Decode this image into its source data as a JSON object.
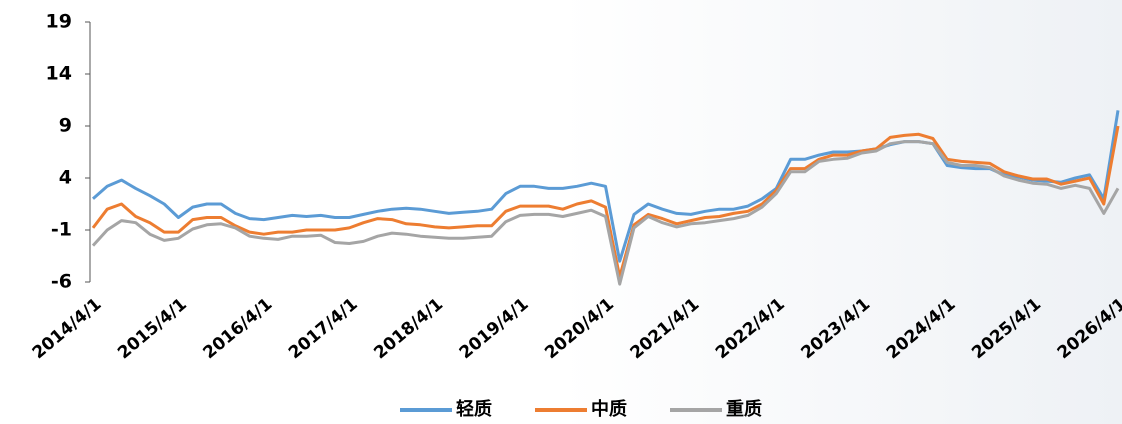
{
  "chart_data": {
    "type": "line",
    "categories": [
      "2014/4/1",
      null,
      null,
      null,
      null,
      null,
      "2015/4/1",
      null,
      null,
      null,
      null,
      null,
      "2016/4/1",
      null,
      null,
      null,
      null,
      null,
      "2017/4/1",
      null,
      null,
      null,
      null,
      null,
      "2018/4/1",
      null,
      null,
      null,
      null,
      null,
      "2019/4/1",
      null,
      null,
      null,
      null,
      null,
      "2020/4/1",
      null,
      null,
      null,
      null,
      null,
      "2021/4/1",
      null,
      null,
      null,
      null,
      null,
      "2022/4/1",
      null,
      null,
      null,
      null,
      null,
      "2023/4/1",
      null,
      null,
      null,
      null,
      null,
      "2024/4/1",
      null,
      null,
      null,
      null,
      null,
      "2025/4/1",
      null,
      null,
      null,
      null,
      null,
      "2026/4/1"
    ],
    "series": [
      {
        "name": "轻质",
        "color": "#5b9bd5",
        "values": [
          2,
          3.2,
          3.8,
          3,
          2.3,
          1.5,
          0.2,
          1.2,
          1.5,
          1.5,
          0.6,
          0.1,
          0,
          0.2,
          0.4,
          0.3,
          0.4,
          0.2,
          0.2,
          0.5,
          0.8,
          1.0,
          1.1,
          1.0,
          0.8,
          0.6,
          0.7,
          0.8,
          1.0,
          2.5,
          3.2,
          3.2,
          3.0,
          3.0,
          3.2,
          3.5,
          3.2,
          -4,
          0.5,
          1.5,
          1.0,
          0.6,
          0.5,
          0.8,
          1.0,
          1.0,
          1.3,
          2.0,
          3.0,
          5.8,
          5.8,
          6.2,
          6.5,
          6.5,
          6.6,
          6.8,
          7.2,
          7.5,
          7.5,
          7.3,
          5.2,
          5.0,
          4.9,
          4.9,
          4.3,
          4.1,
          3.8,
          3.7,
          3.6,
          4.0,
          4.3,
          2.0,
          10.5
        ]
      },
      {
        "name": "中质",
        "color": "#ed7d31",
        "values": [
          -0.8,
          1.0,
          1.5,
          0.3,
          -0.3,
          -1.2,
          -1.2,
          0.0,
          0.2,
          0.2,
          -0.6,
          -1.2,
          -1.4,
          -1.2,
          -1.2,
          -1.0,
          -1.0,
          -1.0,
          -0.8,
          -0.3,
          0.1,
          0.0,
          -0.4,
          -0.5,
          -0.7,
          -0.8,
          -0.7,
          -0.6,
          -0.6,
          0.8,
          1.3,
          1.3,
          1.3,
          1.0,
          1.5,
          1.8,
          1.2,
          -5.5,
          -0.5,
          0.5,
          0.1,
          -0.4,
          -0.1,
          0.2,
          0.3,
          0.6,
          0.8,
          1.5,
          2.8,
          4.9,
          4.9,
          5.8,
          6.2,
          6.2,
          6.6,
          6.8,
          7.9,
          8.1,
          8.2,
          7.8,
          5.8,
          5.6,
          5.5,
          5.4,
          4.6,
          4.2,
          3.9,
          3.9,
          3.4,
          3.7,
          4.0,
          1.5,
          9.0
        ]
      },
      {
        "name": "重质",
        "color": "#a5a5a5",
        "values": [
          -2.5,
          -1.0,
          -0.1,
          -0.3,
          -1.4,
          -2.0,
          -1.8,
          -0.9,
          -0.5,
          -0.4,
          -0.8,
          -1.6,
          -1.8,
          -1.9,
          -1.6,
          -1.6,
          -1.5,
          -2.2,
          -2.3,
          -2.1,
          -1.6,
          -1.3,
          -1.4,
          -1.6,
          -1.7,
          -1.8,
          -1.8,
          -1.7,
          -1.6,
          -0.2,
          0.4,
          0.5,
          0.5,
          0.3,
          0.6,
          0.9,
          0.3,
          -6.2,
          -0.8,
          0.3,
          -0.3,
          -0.7,
          -0.4,
          -0.3,
          -0.1,
          0.1,
          0.4,
          1.2,
          2.5,
          4.6,
          4.6,
          5.6,
          5.8,
          5.9,
          6.4,
          6.6,
          7.3,
          7.5,
          7.5,
          7.3,
          5.5,
          5.2,
          5.2,
          5.0,
          4.2,
          3.8,
          3.5,
          3.4,
          3.0,
          3.3,
          3.0,
          0.6,
          3.0
        ]
      }
    ],
    "ylim": [
      -6,
      19
    ],
    "yticks": [
      -6,
      -1,
      4,
      9,
      14,
      19
    ],
    "grid": false
  }
}
